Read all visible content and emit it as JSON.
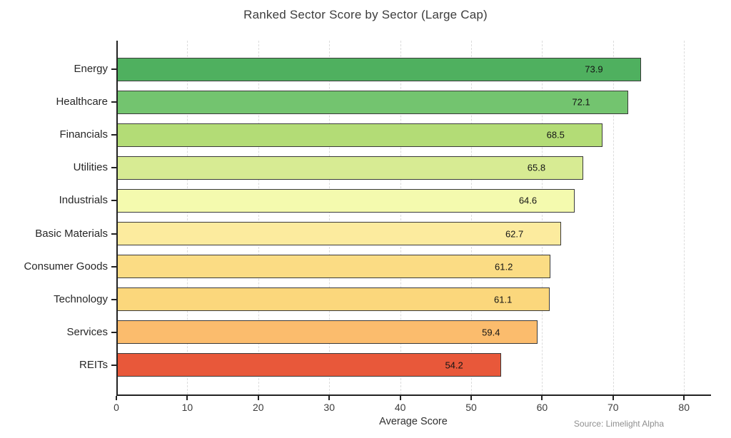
{
  "chart_data": {
    "type": "bar",
    "orientation": "horizontal",
    "title": "Ranked Sector Score by Sector (Large Cap)",
    "xlabel": "Average Score",
    "source_note": "Source: Limelight Alpha",
    "categories": [
      "Energy",
      "Healthcare",
      "Financials",
      "Utilities",
      "Industrials",
      "Basic Materials",
      "Consumer Goods",
      "Technology",
      "Services",
      "REITs"
    ],
    "values": [
      73.9,
      72.1,
      68.5,
      65.8,
      64.6,
      62.7,
      61.2,
      61.1,
      59.4,
      54.2
    ],
    "value_labels": [
      "73.9",
      "72.1",
      "68.5",
      "65.8",
      "64.6",
      "62.7",
      "61.2",
      "61.1",
      "59.4",
      "54.2"
    ],
    "bar_colors": [
      "#4fb05f",
      "#73c46f",
      "#b3dc76",
      "#d7eb93",
      "#f4faae",
      "#fceb9e",
      "#fbdc84",
      "#fbd77c",
      "#fbbc6d",
      "#e8583a"
    ],
    "bar_edge_color": "#3a3a3a",
    "xticks": [
      "0",
      "10",
      "20",
      "30",
      "40",
      "50",
      "60",
      "70",
      "80"
    ],
    "xtick_values": [
      0,
      10,
      20,
      30,
      40,
      50,
      60,
      70,
      80
    ],
    "xlim": [
      0,
      83.7
    ],
    "grid": "vertical-dashed",
    "gridline_color": "#dcdcdc",
    "legend": "none"
  }
}
